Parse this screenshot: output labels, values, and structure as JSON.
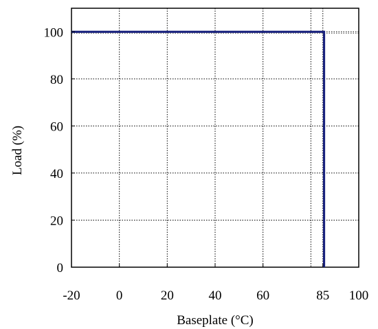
{
  "chart_data": {
    "type": "line",
    "xlabel": "Baseplate (°C)",
    "ylabel": "Load (%)",
    "xlim": [
      -20,
      100
    ],
    "ylim": [
      0,
      110
    ],
    "x_ticks": [
      {
        "value": -20,
        "label": "-20"
      },
      {
        "value": 0,
        "label": "0"
      },
      {
        "value": 20,
        "label": "20"
      },
      {
        "value": 40,
        "label": "40"
      },
      {
        "value": 60,
        "label": "60"
      },
      {
        "value": 85,
        "label": "85"
      },
      {
        "value": 100,
        "label": "100"
      }
    ],
    "x_gridlines": [
      0,
      20,
      40,
      60,
      80,
      85
    ],
    "y_ticks": [
      {
        "value": 0,
        "label": "0"
      },
      {
        "value": 20,
        "label": "20"
      },
      {
        "value": 40,
        "label": "40"
      },
      {
        "value": 60,
        "label": "60"
      },
      {
        "value": 80,
        "label": "80"
      },
      {
        "value": 100,
        "label": "100"
      }
    ],
    "grid": true,
    "grid_style": "dotted",
    "series": [
      {
        "color": "#1a237e",
        "x": [
          -20,
          85.5,
          85.5
        ],
        "y": [
          100,
          100,
          0
        ]
      }
    ]
  }
}
